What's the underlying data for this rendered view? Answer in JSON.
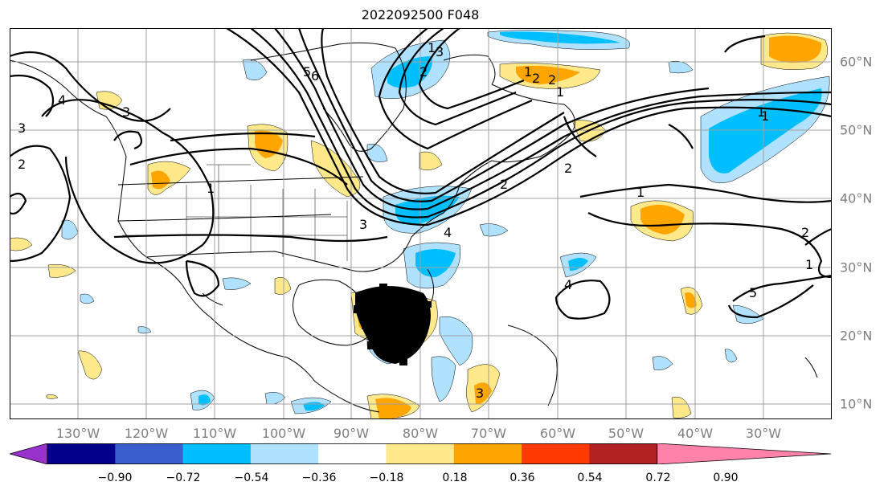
{
  "title": "2022092500 F048",
  "longitude_labels": [
    "130°W",
    "120°W",
    "110°W",
    "100°W",
    "90°W",
    "80°W",
    "70°W",
    "60°W",
    "50°W",
    "40°W",
    "30°W"
  ],
  "latitude_labels": [
    "60°N",
    "50°N",
    "40°N",
    "30°N",
    "20°N",
    "10°N"
  ],
  "colorbar": {
    "ticks": [
      "−0.90",
      "−0.72",
      "−0.54",
      "−0.36",
      "−0.18",
      "0.18",
      "0.36",
      "0.54",
      "0.72",
      "0.90"
    ],
    "colors": [
      "#9932cc",
      "#00008b",
      "#3a5fcd",
      "#00bfff",
      "#b0e2ff",
      "#ffffff",
      "#ffe98a",
      "#ffa500",
      "#ff3a00",
      "#b22222",
      "#ff82ab"
    ]
  },
  "contour_labels": [
    "1",
    "2",
    "3",
    "4",
    "5",
    "6",
    "1",
    "2",
    "3",
    "4",
    "5",
    "1",
    "2",
    "1",
    "2",
    "3",
    "1",
    "2",
    "1",
    "4",
    "3",
    "2",
    "1",
    "3",
    "2",
    "1"
  ],
  "grid_color": "#a0a0a0"
}
